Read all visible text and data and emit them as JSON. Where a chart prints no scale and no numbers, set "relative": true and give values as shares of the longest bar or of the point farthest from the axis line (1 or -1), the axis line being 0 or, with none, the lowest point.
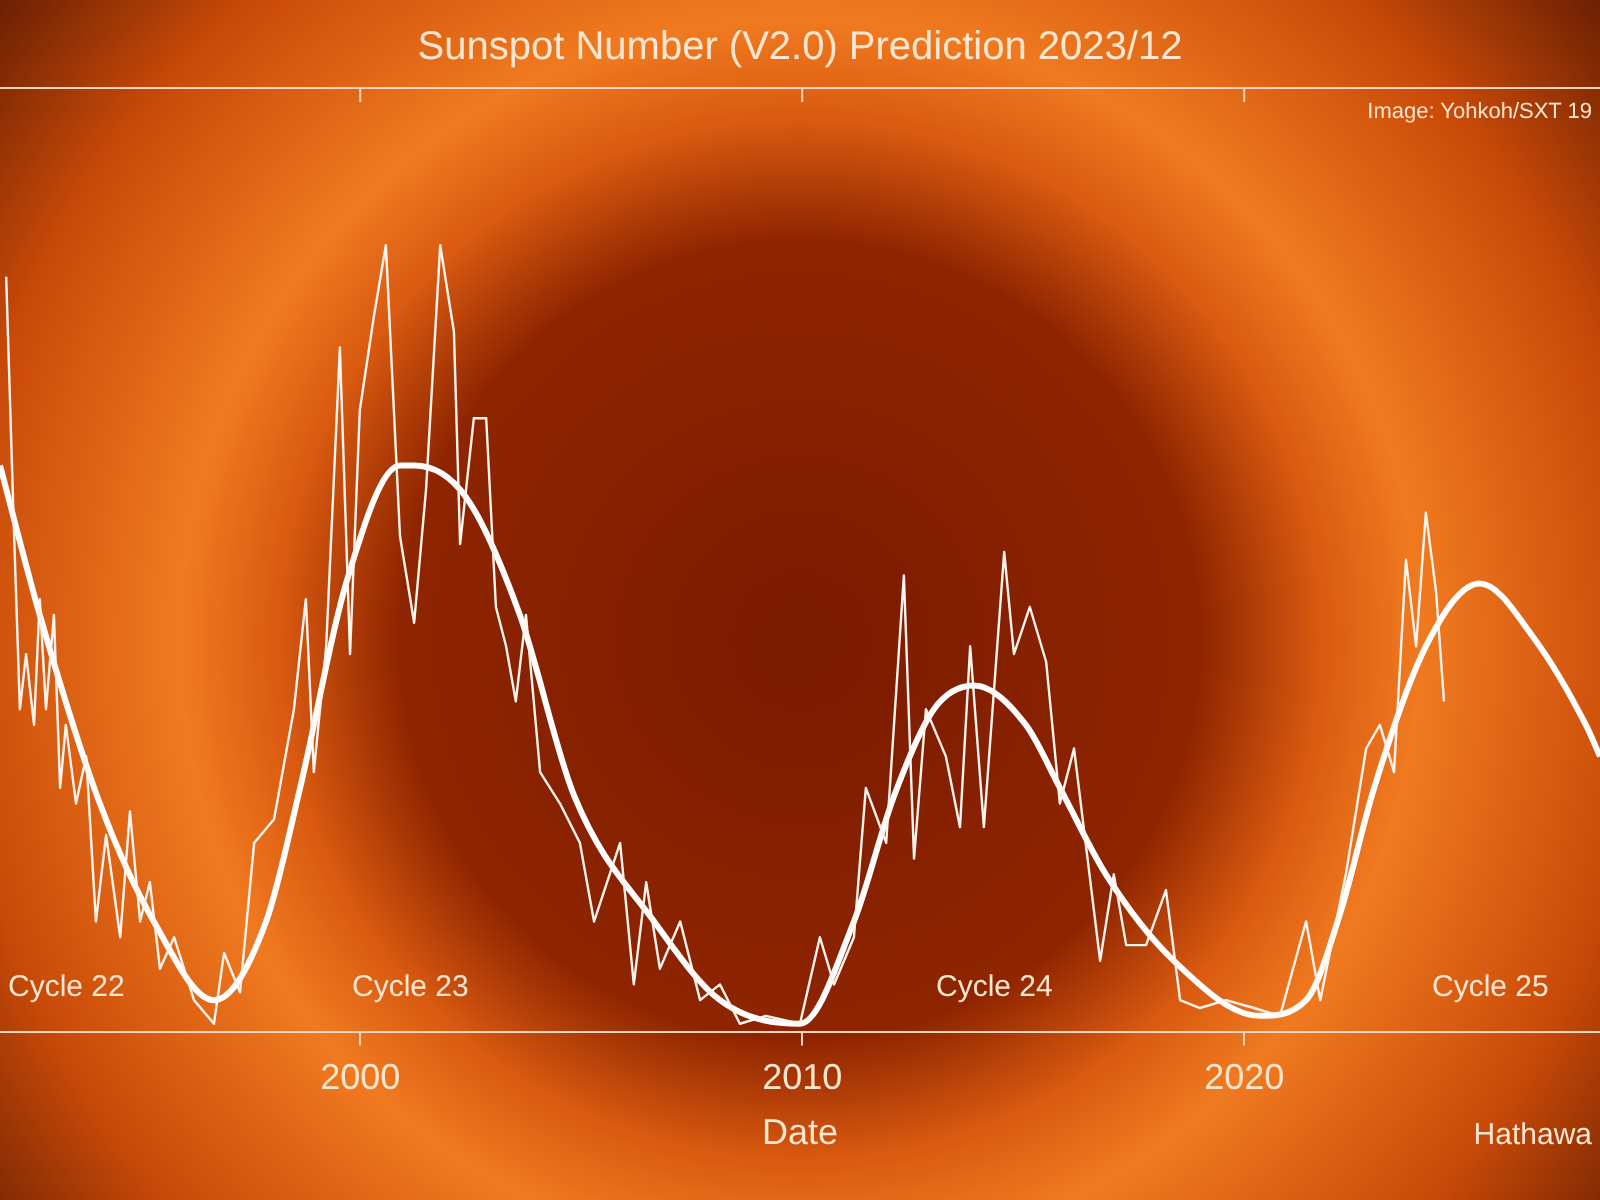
{
  "chart_data": {
    "type": "line",
    "title": "Sunspot Number (V2.0) Prediction 2023/12",
    "xlabel": "Date",
    "relative": true,
    "xlim": [
      1991.85,
      2028.05
    ],
    "xticks": [
      2000,
      2010,
      2020
    ],
    "annotations": [
      "Cycle 22",
      "Cycle 23",
      "Cycle 24",
      "Cycle 25",
      "Image: Yohkoh/SXT 19",
      "Hathawa"
    ],
    "series": [
      {
        "color": "#fff4ee",
        "x": [
          1991.99,
          1992.17,
          1992.3,
          1992.44,
          1992.62,
          1992.75,
          1992.89,
          1993.07,
          1993.21,
          1993.34,
          1993.57,
          1993.8,
          1994.02,
          1994.25,
          1994.57,
          1994.79,
          1995.02,
          1995.24,
          1995.47,
          1995.79,
          1996.24,
          1996.69,
          1996.92,
          1997.28,
          1997.6,
          1998.05,
          1998.5,
          1998.77,
          1998.95,
          1999.23,
          1999.54,
          1999.77,
          1999.99,
          2000.31,
          2000.58,
          2000.9,
          2001.22,
          2001.49,
          2001.81,
          2002.12,
          2002.26,
          2002.57,
          2002.85,
          2003.07,
          2003.3,
          2003.52,
          2003.75,
          2004.07,
          2004.52,
          2004.97,
          2005.29,
          2005.88,
          2006.19,
          2006.47,
          2006.78,
          2007.24,
          2007.69,
          2008.14,
          2008.59,
          2009.18,
          2009.95,
          2010.4,
          2010.72,
          2011.17,
          2011.44,
          2011.9,
          2012.3,
          2012.53,
          2012.8,
          2013.25,
          2013.57,
          2013.8,
          2014.11,
          2014.57,
          2014.79,
          2015.15,
          2015.52,
          2015.83,
          2016.15,
          2016.74,
          2017.05,
          2017.33,
          2017.78,
          2018.23,
          2018.55,
          2019.0,
          2019.59,
          2020.22,
          2020.81,
          2021.4,
          2021.72,
          2022.3,
          2022.76,
          2023.07,
          2023.39,
          2023.66,
          2023.89,
          2024.11,
          2024.34,
          2024.52
        ],
        "values": [
          0.96,
          0.63,
          0.41,
          0.48,
          0.39,
          0.55,
          0.41,
          0.53,
          0.31,
          0.39,
          0.29,
          0.35,
          0.14,
          0.25,
          0.12,
          0.28,
          0.14,
          0.19,
          0.08,
          0.12,
          0.04,
          0.01,
          0.1,
          0.05,
          0.24,
          0.27,
          0.41,
          0.55,
          0.33,
          0.49,
          0.87,
          0.48,
          0.79,
          0.91,
          1,
          0.63,
          0.52,
          0.69,
          1,
          0.89,
          0.62,
          0.78,
          0.78,
          0.54,
          0.49,
          0.42,
          0.53,
          0.33,
          0.29,
          0.24,
          0.14,
          0.24,
          0.06,
          0.19,
          0.08,
          0.14,
          0.04,
          0.06,
          0.01,
          0.02,
          0.01,
          0.12,
          0.06,
          0.12,
          0.31,
          0.24,
          0.58,
          0.22,
          0.41,
          0.35,
          0.26,
          0.49,
          0.26,
          0.61,
          0.48,
          0.54,
          0.47,
          0.29,
          0.36,
          0.09,
          0.2,
          0.11,
          0.11,
          0.18,
          0.04,
          0.03,
          0.04,
          0.03,
          0.02,
          0.14,
          0.04,
          0.2,
          0.36,
          0.39,
          0.33,
          0.6,
          0.49,
          0.66,
          0.56,
          0.42
        ]
      },
      {
        "color": "#ffffff",
        "x": [
          1991.85,
          1992.75,
          1994.11,
          1995.33,
          1996.69,
          1997.87,
          1998.64,
          1999.68,
          2000.9,
          2001.22,
          2002.39,
          2003.61,
          2004.84,
          2006.65,
          2008.14,
          2009.95,
          2011.17,
          2012.08,
          2012.98,
          2013.89,
          2015.06,
          2015.83,
          2016.87,
          2018.41,
          2020.36,
          2021.4,
          2022.17,
          2022.94,
          2024.11,
          2025.33,
          2026.56,
          2027.73,
          2028.05
        ],
        "values": [
          0.72,
          0.53,
          0.29,
          0.14,
          0.04,
          0.14,
          0.31,
          0.57,
          0.72,
          0.72,
          0.68,
          0.53,
          0.3,
          0.14,
          0.04,
          0.01,
          0.14,
          0.3,
          0.41,
          0.44,
          0.39,
          0.31,
          0.2,
          0.09,
          0.02,
          0.04,
          0.15,
          0.31,
          0.49,
          0.57,
          0.5,
          0.39,
          0.35
        ]
      }
    ]
  }
}
